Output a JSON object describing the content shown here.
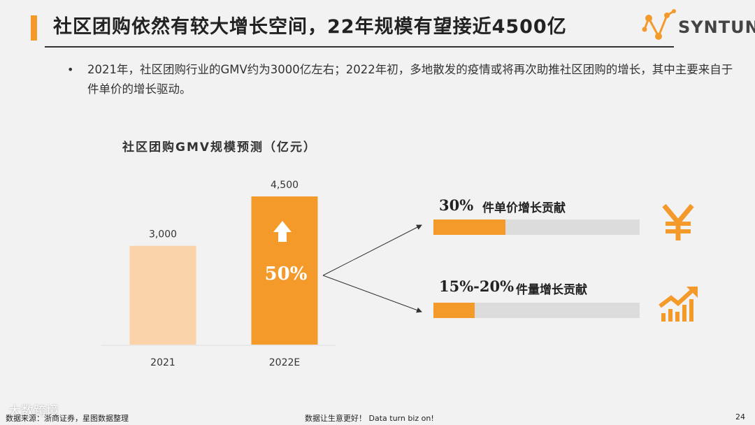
{
  "header": {
    "title": "社区团购依然有较大增长空间，22年规模有望接近4500亿",
    "logo_text": "SYNTUN"
  },
  "bullet": {
    "text": "2021年，社区团购行业的GMV约为3000亿左右；2022年初，多地散发的疫情或将再次助推社区团购的增长，其中主要来自于件单价的增长驱动。"
  },
  "chart_data": {
    "type": "bar",
    "title": "社区团购GMV规模预测（亿元）",
    "categories": [
      "2021",
      "2022E"
    ],
    "values": [
      3000,
      4500
    ],
    "value_labels": [
      "3,000",
      "4,500"
    ],
    "ylim": [
      0,
      4500
    ],
    "growth_label": "50%",
    "bar_colors": [
      "#fbd3aa",
      "#f39a2b"
    ]
  },
  "contributions": [
    {
      "pct": "30%",
      "label": "件单价增长贡献",
      "fill_fraction": 0.35,
      "icon": "yuan-icon"
    },
    {
      "pct": "15%-20%",
      "label": "件量增长贡献",
      "fill_fraction": 0.2,
      "icon": "growth-chart-icon"
    }
  ],
  "colors": {
    "accent": "#f39a2b",
    "light_accent": "#fbd3aa",
    "track": "#dcdcdc"
  },
  "footer": {
    "source": "数据来源：浙商证券，星图数据整理",
    "slogan": "数据让生意更好！ Data turn biz on!",
    "page_number": "24"
  },
  "watermark": "大数跨境"
}
